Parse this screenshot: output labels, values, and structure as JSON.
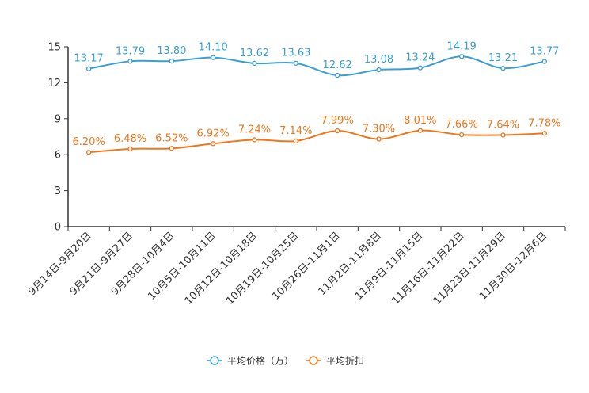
{
  "chart_data": {
    "type": "line",
    "title": "",
    "xlabel": "",
    "ylabel": "",
    "ylim": [
      0,
      15
    ],
    "yticks": [
      0,
      3,
      6,
      9,
      12,
      15
    ],
    "grid": false,
    "legend_position": "bottom",
    "categories": [
      "9月14日-9月20日",
      "9月21日-9月27日",
      "9月28日-10月4日",
      "10月5日-10月11日",
      "10月12日-10月18日",
      "10月19日-10月25日",
      "10月26日-11月1日",
      "11月2日-11月8日",
      "11月9日-11月15日",
      "11月16日-11月22日",
      "11月23日-11月29日",
      "11月30日-12月6日"
    ],
    "series": [
      {
        "name": "平均价格（万）",
        "color": "#3a9fd1",
        "values": [
          13.17,
          13.79,
          13.8,
          14.1,
          13.62,
          13.63,
          12.62,
          13.08,
          13.24,
          14.19,
          13.21,
          13.77
        ],
        "labels": [
          "13.17",
          "13.79",
          "13.80",
          "14.10",
          "13.62",
          "13.63",
          "12.62",
          "13.08",
          "13.24",
          "14.19",
          "13.21",
          "13.77"
        ]
      },
      {
        "name": "平均折扣",
        "color": "#f0761b",
        "values": [
          6.2,
          6.48,
          6.52,
          6.92,
          7.24,
          7.14,
          7.99,
          7.3,
          8.01,
          7.66,
          7.64,
          7.78
        ],
        "labels": [
          "6.20%",
          "6.48%",
          "6.52%",
          "6.92%",
          "7.24%",
          "7.14%",
          "7.99%",
          "7.30%",
          "8.01%",
          "7.66%",
          "7.64%",
          "7.78%"
        ]
      }
    ]
  }
}
